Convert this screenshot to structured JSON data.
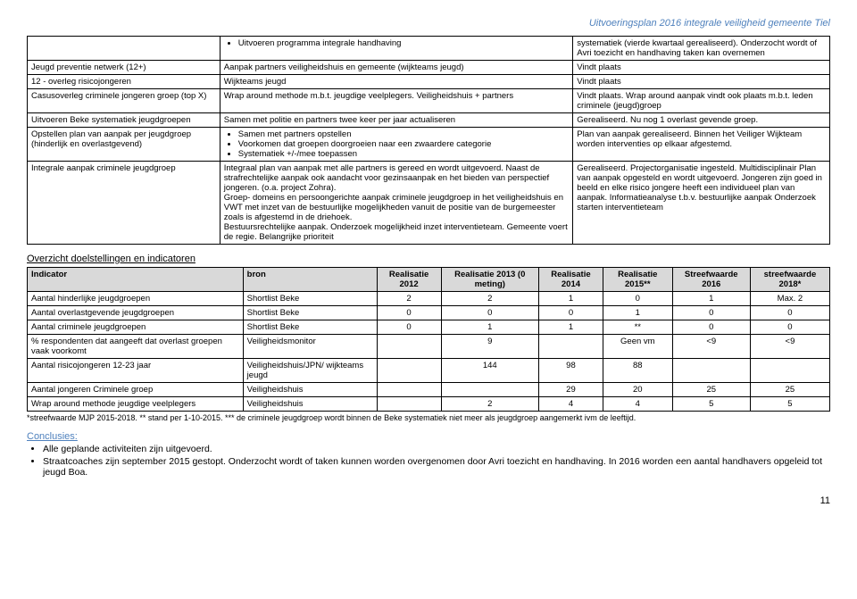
{
  "header_right": "Uitvoeringsplan 2016 integrale veiligheid gemeente Tiel",
  "activities": {
    "rows": [
      {
        "c0": "",
        "c1": "<ul class='cellbullets'><li>Uitvoeren programma integrale handhaving</li></ul>",
        "c2": "systematiek (vierde kwartaal gerealiseerd). Onderzocht wordt of Avri toezicht en handhaving taken kan overnemen"
      },
      {
        "c0": "Jeugd preventie netwerk (12+)",
        "c1": "Aanpak partners veiligheidshuis en gemeente (wijkteams jeugd)",
        "c2": "Vindt plaats"
      },
      {
        "c0": "12 - overleg risicojongeren",
        "c1": "Wijkteams jeugd",
        "c2": "Vindt plaats"
      },
      {
        "c0": "Casusoverleg criminele jongeren groep (top X)",
        "c1": "Wrap around methode m.b.t. jeugdige veelplegers. Veiligheidshuis + partners",
        "c2": "Vindt plaats. Wrap around aanpak vindt ook plaats m.b.t. leden criminele (jeugd)groep"
      },
      {
        "c0": "Uitvoeren Beke systematiek jeugdgroepen",
        "c1": "Samen met politie en partners twee keer per jaar actualiseren",
        "c2": "Gerealiseerd. Nu nog 1 overlast gevende groep."
      },
      {
        "c0": "Opstellen plan van aanpak per jeugdgroep (hinderlijk en overlastgevend)",
        "c1": "<ul class='cellbullets'><li>Samen met partners opstellen</li><li>Voorkomen dat groepen doorgroeien naar een zwaardere categorie</li><li>Systematiek +/-/mee toepassen</li></ul>",
        "c2": "Plan van aanpak gerealiseerd. Binnen het Veiliger Wijkteam worden interventies op elkaar afgestemd."
      },
      {
        "c0": "Integrale aanpak criminele jeugdgroep",
        "c1": "Integraal plan van aanpak met alle partners is gereed en wordt uitgevoerd. Naast de strafrechtelijke aanpak ook aandacht voor gezinsaanpak en het bieden van perspectief jongeren. (o.a. project Zohra).<br>Groep- domeins en persoongerichte aanpak criminele jeugdgroep in het veiligheidshuis en VWT met inzet van de bestuurlijke mogelijkheden vanuit de positie van de burgemeester zoals is afgestemd in de driehoek.<br>Bestuursrechtelijke aanpak. Onderzoek mogelijkheid inzet interventieteam. Gemeente voert de regie. Belangrijke prioriteit",
        "c2": "Gerealiseerd. Projectorganisatie ingesteld. Multidisciplinair Plan van aanpak opgesteld en wordt uitgevoerd. Jongeren zijn goed in beeld en elke risico jongere heeft een individueel plan van aanpak. Informatieanalyse t.b.v. bestuurlijke aanpak Onderzoek starten interventieteam"
      }
    ]
  },
  "overzicht_title": "Overzicht doelstellingen en indicatoren",
  "indicators": {
    "headers": [
      "Indicator",
      "bron",
      "Realisatie 2012",
      "Realisatie 2013 (0 meting)",
      "Realisatie 2014",
      "Realisatie 2015**",
      "Streefwaarde 2016",
      "streefwaarde 2018*"
    ],
    "rows": [
      [
        "Aantal hinderlijke jeugdgroepen",
        "Shortlist Beke",
        "2",
        "2",
        "1",
        "0",
        "1",
        "Max. 2"
      ],
      [
        "Aantal overlastgevende jeugdgroepen",
        "Shortlist Beke",
        "0",
        "0",
        "0",
        "1",
        "0",
        "0"
      ],
      [
        "Aantal criminele jeugdgroepen",
        "Shortlist Beke",
        "0",
        "1",
        "1",
        "**",
        "0",
        "0"
      ],
      [
        "% respondenten dat aangeeft dat overlast groepen vaak voorkomt",
        "Veiligheidsmonitor",
        "",
        "9",
        "",
        "Geen vm",
        "<9",
        "<9"
      ],
      [
        "Aantal risicojongeren 12-23 jaar",
        "Veiligheidshuis/JPN/ wijkteams jeugd",
        "",
        "144",
        "98",
        "88",
        "",
        ""
      ],
      [
        "Aantal jongeren Criminele groep",
        "Veiligheidshuis",
        "",
        "",
        "29",
        "20",
        "25",
        "25"
      ],
      [
        "Wrap around methode jeugdige veelplegers",
        "Veiligheidshuis",
        "",
        "2",
        "4",
        "4",
        "5",
        "5"
      ]
    ]
  },
  "footnote": "*streefwaarde MJP 2015-2018. ** stand per 1-10-2015. *** de criminele jeugdgroep wordt binnen de Beke systematiek niet meer als jeugdgroep aangemerkt ivm de leeftijd.",
  "conclusies_title": "Conclusies:",
  "conclusies": [
    "Alle geplande activiteiten zijn uitgevoerd.",
    "Straatcoaches zijn september 2015 gestopt. Onderzocht wordt of taken kunnen worden overgenomen door Avri toezicht en handhaving. In 2016 worden een aantal handhavers opgeleid tot jeugd Boa."
  ],
  "pagenum": "11"
}
